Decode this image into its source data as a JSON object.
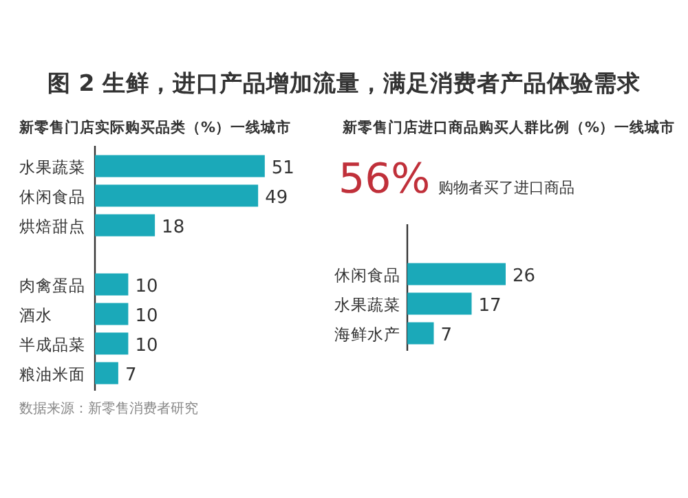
{
  "chart_data": [
    {
      "type": "bar",
      "orientation": "horizontal",
      "title": "图 2 生鲜，进口产品增加流量，满足消费者产品体验需求",
      "subtitle": "新零售门店实际购买品类（%）一线城市",
      "categories": [
        "水果蔬菜",
        "休闲食品",
        "烘焙甜点",
        null,
        "肉禽蛋品",
        "酒水",
        "半成品菜",
        "粮油米面"
      ],
      "values": [
        51,
        49,
        18,
        null,
        10,
        10,
        10,
        7
      ],
      "color": "#1ba9b9",
      "data_labels": true,
      "annotations": [
        "数据来源：新零售消费者研究"
      ]
    },
    {
      "type": "bar",
      "orientation": "horizontal",
      "subtitle": "新零售门店进口商品购买人群比例（%）一线城市",
      "categories": [
        null,
        "休闲食品",
        "水果蔬菜",
        "海鲜水产"
      ],
      "values": [
        null,
        26,
        17,
        7
      ],
      "color": "#1ba9b9",
      "data_labels": true,
      "annotations": [
        "56% 购物者买了进口商品"
      ]
    }
  ]
}
